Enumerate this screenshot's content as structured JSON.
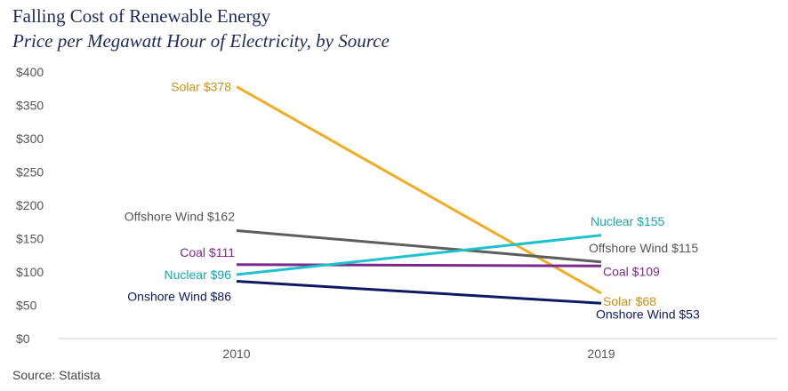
{
  "title": "Falling Cost of Renewable Energy",
  "subtitle": "Price per Megawatt Hour of Electricity, by Source",
  "source": "Source: Statista",
  "chart_data": {
    "type": "line",
    "x": [
      "2010",
      "2019"
    ],
    "ylim": [
      0,
      400
    ],
    "yticks": [
      0,
      50,
      100,
      150,
      200,
      250,
      300,
      350,
      400
    ],
    "ytick_labels": [
      "$0",
      "$50",
      "$100",
      "$150",
      "$200",
      "$250",
      "$300",
      "$350",
      "$400"
    ],
    "grid": false,
    "legend": "none",
    "series": [
      {
        "name": "Solar",
        "values": [
          378,
          68
        ],
        "color": "#f0ad22",
        "labels": [
          "Solar $378",
          "Solar $68"
        ],
        "label_color": "#c8901a"
      },
      {
        "name": "Offshore Wind",
        "values": [
          162,
          115
        ],
        "color": "#5e5e5e",
        "labels": [
          "Offshore Wind $162",
          "Offshore Wind $115"
        ],
        "label_color": "#555555"
      },
      {
        "name": "Coal",
        "values": [
          111,
          109
        ],
        "color": "#7b2a8c",
        "labels": [
          "Coal $111",
          "Coal $109"
        ],
        "label_color": "#7b2a8c"
      },
      {
        "name": "Nuclear",
        "values": [
          96,
          155
        ],
        "color": "#1ec1cc",
        "labels": [
          "Nuclear $96",
          "Nuclear $155"
        ],
        "label_color": "#17a6b0"
      },
      {
        "name": "Onshore Wind",
        "values": [
          86,
          53
        ],
        "color": "#0d1a63",
        "labels": [
          "Onshore Wind $86",
          "Onshore Wind $53"
        ],
        "label_color": "#0d1a63"
      }
    ]
  }
}
